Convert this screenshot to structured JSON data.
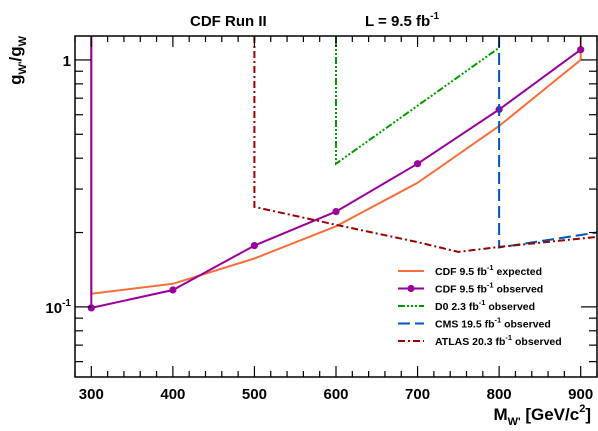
{
  "chart_data": {
    "type": "line",
    "title_left": "CDF Run II",
    "title_right": {
      "text": "L = 9.5 fb",
      "sup": "-1"
    },
    "xlabel": {
      "main": "M",
      "sub": "W'",
      "rest": " [GeV/c",
      "sup": "2",
      "end": "]"
    },
    "ylabel": {
      "g1": "g",
      "sub1": "W'",
      "slash": "/g",
      "sub2": "W"
    },
    "x_range": [
      280,
      920
    ],
    "y_range": [
      0.052,
      1.25
    ],
    "y_scale": "log",
    "x_ticks": [
      "300",
      "400",
      "500",
      "600",
      "700",
      "800",
      "900"
    ],
    "y_tick_labels": [
      {
        "value": 1,
        "main": "1",
        "sup": ""
      },
      {
        "value": 0.1,
        "main": "10",
        "sup": "-1"
      }
    ],
    "legend_placement": "bottom-right",
    "series": [
      {
        "name": {
          "pre": "CDF 9.5 fb",
          "sup": "-1",
          "post": " expected"
        },
        "color": "#f46f3c",
        "dash": "",
        "markers": false,
        "points": [
          [
            300,
            1.25
          ],
          [
            300,
            0.113
          ],
          [
            400,
            0.124
          ],
          [
            500,
            0.157
          ],
          [
            600,
            0.212
          ],
          [
            700,
            0.318
          ],
          [
            800,
            0.54
          ],
          [
            900,
            1.0
          ],
          [
            900,
            1.25
          ]
        ]
      },
      {
        "name": {
          "pre": "CDF 9.5 fb",
          "sup": "-1",
          "post": " observed"
        },
        "color": "#990099",
        "dash": "",
        "markers": true,
        "points": [
          [
            300,
            1.25
          ],
          [
            300,
            0.099
          ],
          [
            400,
            0.117
          ],
          [
            500,
            0.177
          ],
          [
            600,
            0.243
          ],
          [
            700,
            0.38
          ],
          [
            800,
            0.63
          ],
          [
            900,
            1.1
          ]
        ]
      },
      {
        "name": {
          "pre": "D0 2.3 fb",
          "sup": "-1",
          "post": " observed"
        },
        "color": "#009900",
        "dash": "7,2,2,2,2,2,2,2",
        "markers": false,
        "points": [
          [
            600,
            1.25
          ],
          [
            600,
            0.38
          ],
          [
            800,
            1.12
          ]
        ]
      },
      {
        "name": {
          "pre": "CMS 19.5 fb",
          "sup": "-1",
          "post": " observed"
        },
        "color": "#0055bb",
        "dash": "12,5",
        "markers": false,
        "points": [
          [
            800,
            1.25
          ],
          [
            800,
            0.174
          ],
          [
            920,
            0.2
          ]
        ]
      },
      {
        "name": {
          "pre": "ATLAS 20.3 fb",
          "sup": "-1",
          "post": " observed"
        },
        "color": "#990000",
        "dash": "7,3,2,3",
        "markers": false,
        "points": [
          [
            500,
            1.25
          ],
          [
            500,
            0.254
          ],
          [
            600,
            0.215
          ],
          [
            700,
            0.183
          ],
          [
            750,
            0.167
          ],
          [
            800,
            0.175
          ],
          [
            920,
            0.192
          ]
        ]
      }
    ]
  }
}
